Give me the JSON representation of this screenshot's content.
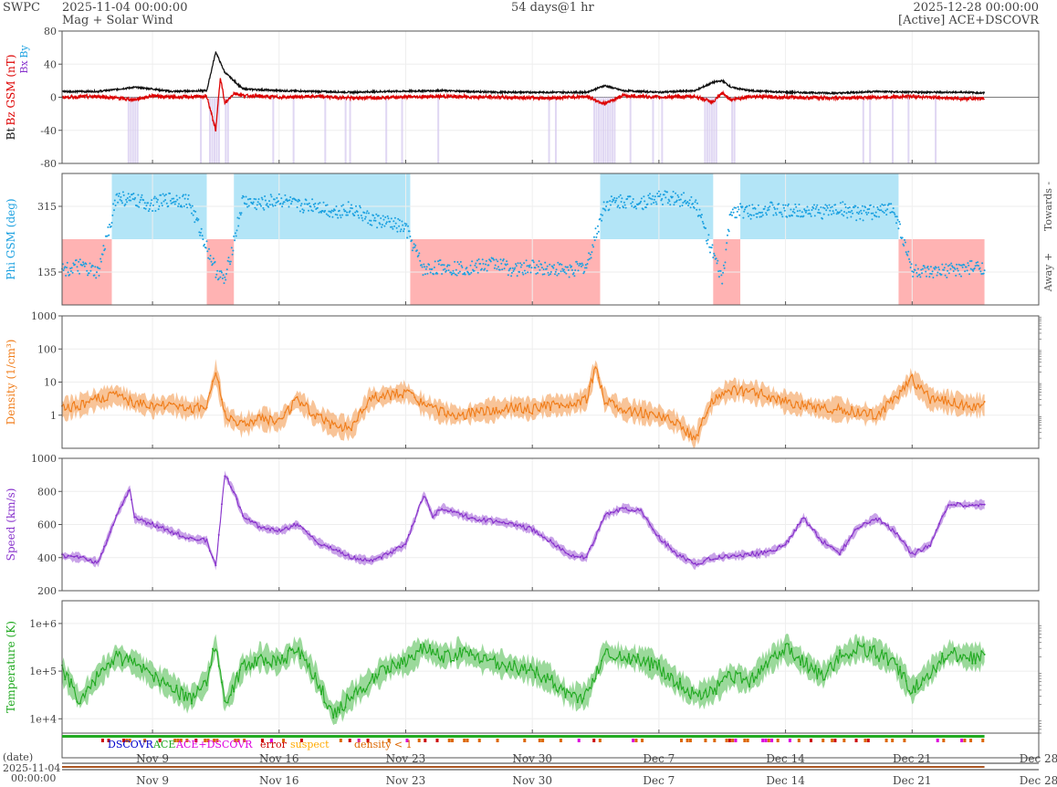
{
  "header": {
    "org": "SWPC",
    "start": "2025-11-04 00:00:00",
    "subtitle": "Mag + Solar Wind",
    "span": "54 days@1 hr",
    "end": "2025-12-28 00:00:00",
    "source": "[Active] ACE+DSCOVR"
  },
  "x_axis": {
    "start_date": "2025-11-04",
    "end_date": "2025-12-28",
    "tick_labels": [
      "Nov 9",
      "Nov 16",
      "Nov 23",
      "Nov 30",
      "Dec 7",
      "Dec 14",
      "Dec 21",
      "Dec 28"
    ],
    "tick_dates": [
      "2025-11-09",
      "2025-11-16",
      "2025-11-23",
      "2025-11-30",
      "2025-12-07",
      "2025-12-14",
      "2025-12-21",
      "2025-12-28"
    ],
    "date_label": "(date)",
    "corner_date": "2025-11-04",
    "corner_time": "00:00:00"
  },
  "legend": {
    "dscovr": "DSCOVR",
    "ace": "ACE",
    "ace_dscovr": "ACE+DSCOVR",
    "error": "error",
    "suspect": "suspect",
    "density_lt1": "density < 1",
    "colors": {
      "dscovr": "#0000cc",
      "ace": "#22aa22",
      "ace_dscovr": "#dd00dd",
      "error": "#cc0000",
      "suspect": "#ffaa00",
      "density_lt1": "#dd6600"
    }
  },
  "chart_data": [
    {
      "type": "line",
      "panel": "mag",
      "ylabel_bt": "Bt",
      "ylabel_bz": "Bz GSM (nT)",
      "ylabel_bx": "Bx",
      "ylabel_by": "By",
      "ylim": [
        -80,
        80
      ],
      "yticks": [
        "80",
        "40",
        "0",
        "-40",
        "-80"
      ],
      "series": [
        {
          "name": "Bt",
          "color": "#111111",
          "x": [
            "2025-11-04",
            "2025-11-06",
            "2025-11-08",
            "2025-11-09",
            "2025-11-10",
            "2025-11-12",
            "2025-11-12 12:00",
            "2025-11-12 18:00",
            "2025-11-13",
            "2025-11-13 12:00",
            "2025-11-14",
            "2025-11-16",
            "2025-11-18",
            "2025-11-20",
            "2025-11-22",
            "2025-11-25",
            "2025-11-28",
            "2025-12-01",
            "2025-12-03",
            "2025-12-04",
            "2025-12-05",
            "2025-12-07",
            "2025-12-09",
            "2025-12-10",
            "2025-12-10 12:00",
            "2025-12-11",
            "2025-12-12",
            "2025-12-14",
            "2025-12-17",
            "2025-12-19",
            "2025-12-21",
            "2025-12-24",
            "2025-12-25"
          ],
          "values": [
            7,
            7,
            12,
            10,
            7,
            8,
            55,
            42,
            30,
            20,
            10,
            8,
            7,
            6,
            7,
            8,
            6,
            6,
            6,
            14,
            8,
            6,
            8,
            18,
            20,
            12,
            8,
            6,
            5,
            7,
            6,
            6,
            5
          ]
        },
        {
          "name": "Bz GSM",
          "color": "#dd0000",
          "x": [
            "2025-11-04",
            "2025-11-06",
            "2025-11-08",
            "2025-11-09",
            "2025-11-10",
            "2025-11-12",
            "2025-11-12 12:00",
            "2025-11-12 18:00",
            "2025-11-13",
            "2025-11-13 12:00",
            "2025-11-14",
            "2025-11-16",
            "2025-11-18",
            "2025-11-20",
            "2025-11-22",
            "2025-11-25",
            "2025-11-28",
            "2025-12-01",
            "2025-12-03",
            "2025-12-04",
            "2025-12-05",
            "2025-12-07",
            "2025-12-09",
            "2025-12-10",
            "2025-12-10 12:00",
            "2025-12-11",
            "2025-12-12",
            "2025-12-14",
            "2025-12-17",
            "2025-12-19",
            "2025-12-21",
            "2025-12-24",
            "2025-12-25"
          ],
          "values": [
            0,
            1,
            -3,
            2,
            0,
            1,
            -40,
            25,
            -8,
            5,
            2,
            0,
            1,
            -1,
            0,
            1,
            0,
            -1,
            1,
            -8,
            2,
            0,
            1,
            -6,
            5,
            -3,
            1,
            0,
            -1,
            0,
            1,
            -2,
            -1
          ]
        }
      ]
    },
    {
      "type": "scatter",
      "panel": "phi",
      "ylabel": "Phi GSM (deg)",
      "right_label_top": "Towards -",
      "right_label_bottom": "Away +",
      "ylim": [
        45,
        405
      ],
      "yticks": [
        "315",
        "135"
      ],
      "sectors": [
        {
          "name": "Away +",
          "color": "#ffb3b3",
          "from": "2025-11-04",
          "to": "2025-11-06 18:00"
        },
        {
          "name": "Towards -",
          "color": "#b3e5f7",
          "from": "2025-11-06 18:00",
          "to": "2025-11-12"
        },
        {
          "name": "Away +",
          "color": "#ffb3b3",
          "from": "2025-11-12",
          "to": "2025-11-13 12:00"
        },
        {
          "name": "Towards -",
          "color": "#b3e5f7",
          "from": "2025-11-13 12:00",
          "to": "2025-11-23 06:00"
        },
        {
          "name": "Away +",
          "color": "#ffb3b3",
          "from": "2025-11-23 06:00",
          "to": "2025-12-03 18:00"
        },
        {
          "name": "Towards -",
          "color": "#b3e5f7",
          "from": "2025-12-03 18:00",
          "to": "2025-12-10"
        },
        {
          "name": "Away +",
          "color": "#ffb3b3",
          "from": "2025-12-10",
          "to": "2025-12-11 12:00"
        },
        {
          "name": "Towards -",
          "color": "#b3e5f7",
          "from": "2025-12-11 12:00",
          "to": "2025-12-20 06:00"
        },
        {
          "name": "Away +",
          "color": "#ffb3b3",
          "from": "2025-12-20 06:00",
          "to": "2025-12-25"
        }
      ],
      "series": [
        {
          "name": "Phi GSM",
          "color": "#1aa0e0",
          "x": [
            "2025-11-04",
            "2025-11-05",
            "2025-11-06",
            "2025-11-07",
            "2025-11-08",
            "2025-11-09",
            "2025-11-10",
            "2025-11-11",
            "2025-11-12 12:00",
            "2025-11-13",
            "2025-11-14",
            "2025-11-15",
            "2025-11-16",
            "2025-11-17",
            "2025-11-18",
            "2025-11-19",
            "2025-11-20",
            "2025-11-21",
            "2025-11-22",
            "2025-11-23",
            "2025-11-24",
            "2025-11-25",
            "2025-11-26",
            "2025-11-27",
            "2025-11-28",
            "2025-11-29",
            "2025-11-30",
            "2025-12-01",
            "2025-12-02",
            "2025-12-03",
            "2025-12-04",
            "2025-12-05",
            "2025-12-06",
            "2025-12-07",
            "2025-12-08",
            "2025-12-09",
            "2025-12-10 12:00",
            "2025-12-11",
            "2025-12-12",
            "2025-12-13",
            "2025-12-14",
            "2025-12-15",
            "2025-12-16",
            "2025-12-17",
            "2025-12-18",
            "2025-12-19",
            "2025-12-20",
            "2025-12-21",
            "2025-12-22",
            "2025-12-23",
            "2025-12-24",
            "2025-12-25"
          ],
          "values": [
            140,
            150,
            130,
            340,
            330,
            320,
            335,
            330,
            140,
            110,
            330,
            320,
            335,
            315,
            320,
            300,
            310,
            280,
            270,
            255,
            140,
            150,
            145,
            150,
            160,
            140,
            150,
            145,
            140,
            150,
            320,
            330,
            325,
            340,
            335,
            330,
            110,
            305,
            300,
            310,
            300,
            305,
            300,
            310,
            295,
            300,
            310,
            140,
            130,
            140,
            145,
            150
          ]
        }
      ]
    },
    {
      "type": "line",
      "panel": "density",
      "ylabel": "Density (1/cm³)",
      "scale": "log",
      "ylim": [
        0.1,
        1000
      ],
      "yticks": [
        "1000",
        "100",
        "10",
        "1"
      ],
      "series": [
        {
          "name": "Density",
          "color": "#f07d1a",
          "x": [
            "2025-11-04",
            "2025-11-05",
            "2025-11-06",
            "2025-11-07",
            "2025-11-08",
            "2025-11-09",
            "2025-11-10",
            "2025-11-11",
            "2025-11-12",
            "2025-11-12 12:00",
            "2025-11-13",
            "2025-11-14",
            "2025-11-15",
            "2025-11-16",
            "2025-11-17",
            "2025-11-18",
            "2025-11-19",
            "2025-11-20",
            "2025-11-21",
            "2025-11-22",
            "2025-11-23",
            "2025-11-24",
            "2025-11-25",
            "2025-11-26",
            "2025-11-27",
            "2025-11-28",
            "2025-11-29",
            "2025-11-30",
            "2025-12-01",
            "2025-12-02",
            "2025-12-03",
            "2025-12-03 12:00",
            "2025-12-04",
            "2025-12-05",
            "2025-12-06",
            "2025-12-07",
            "2025-12-08",
            "2025-12-09",
            "2025-12-10",
            "2025-12-11",
            "2025-12-12",
            "2025-12-13",
            "2025-12-14",
            "2025-12-15",
            "2025-12-16",
            "2025-12-17",
            "2025-12-18",
            "2025-12-19",
            "2025-12-20",
            "2025-12-21",
            "2025-12-22",
            "2025-12-23",
            "2025-12-24",
            "2025-12-25"
          ],
          "values": [
            1.5,
            2.0,
            3.0,
            4.0,
            2.5,
            1.8,
            2.2,
            1.5,
            2.0,
            20,
            1.0,
            0.5,
            0.8,
            0.6,
            3.0,
            1.0,
            0.5,
            0.4,
            3.0,
            4.0,
            5.0,
            2.0,
            1.2,
            1.0,
            1.2,
            1.5,
            1.8,
            1.5,
            2.0,
            2.0,
            3.0,
            30,
            3.0,
            1.5,
            1.2,
            1.0,
            0.6,
            0.2,
            3.0,
            6.0,
            5.0,
            4.0,
            2.5,
            2.0,
            1.5,
            1.5,
            1.2,
            1.0,
            3.0,
            12,
            3.0,
            2.5,
            2.0,
            2.0
          ]
        }
      ]
    },
    {
      "type": "line",
      "panel": "speed",
      "ylabel": "Speed (km/s)",
      "ylim": [
        200,
        1000
      ],
      "yticks": [
        "1000",
        "800",
        "600",
        "400",
        "200"
      ],
      "series": [
        {
          "name": "Speed",
          "color": "#8833cc",
          "x": [
            "2025-11-04",
            "2025-11-05",
            "2025-11-06",
            "2025-11-07",
            "2025-11-07 18:00",
            "2025-11-08",
            "2025-11-09",
            "2025-11-10",
            "2025-11-11",
            "2025-11-12",
            "2025-11-12 12:00",
            "2025-11-13",
            "2025-11-13 12:00",
            "2025-11-14",
            "2025-11-15",
            "2025-11-16",
            "2025-11-17",
            "2025-11-18",
            "2025-11-19",
            "2025-11-20",
            "2025-11-21",
            "2025-11-22",
            "2025-11-23",
            "2025-11-24",
            "2025-11-24 12:00",
            "2025-11-25",
            "2025-11-26",
            "2025-11-27",
            "2025-11-28",
            "2025-11-29",
            "2025-11-30",
            "2025-12-01",
            "2025-12-02",
            "2025-12-03",
            "2025-12-04",
            "2025-12-05",
            "2025-12-06",
            "2025-12-07",
            "2025-12-08",
            "2025-12-09",
            "2025-12-10",
            "2025-12-11",
            "2025-12-12",
            "2025-12-13",
            "2025-12-14",
            "2025-12-15",
            "2025-12-16",
            "2025-12-17",
            "2025-12-18",
            "2025-12-19",
            "2025-12-20",
            "2025-12-21",
            "2025-12-22",
            "2025-12-23",
            "2025-12-24",
            "2025-12-25"
          ],
          "values": [
            410,
            400,
            370,
            650,
            820,
            640,
            600,
            560,
            520,
            500,
            350,
            900,
            800,
            650,
            580,
            560,
            600,
            500,
            450,
            400,
            380,
            420,
            480,
            780,
            650,
            700,
            660,
            630,
            620,
            600,
            570,
            500,
            420,
            400,
            650,
            700,
            680,
            520,
            420,
            360,
            400,
            410,
            420,
            430,
            480,
            640,
            500,
            430,
            580,
            640,
            560,
            420,
            480,
            720,
            720,
            720
          ]
        }
      ]
    },
    {
      "type": "line",
      "panel": "temperature",
      "ylabel": "Temperature (K)",
      "scale": "log",
      "ylim": [
        5000,
        3000000
      ],
      "yticks": [
        "1e+6",
        "1e+5",
        "1e+4"
      ],
      "series": [
        {
          "name": "Temperature",
          "color": "#22aa22",
          "x": [
            "2025-11-04",
            "2025-11-05",
            "2025-11-06",
            "2025-11-07",
            "2025-11-08",
            "2025-11-09",
            "2025-11-10",
            "2025-11-11",
            "2025-11-12",
            "2025-11-12 12:00",
            "2025-11-13",
            "2025-11-14",
            "2025-11-15",
            "2025-11-16",
            "2025-11-17",
            "2025-11-18",
            "2025-11-19",
            "2025-11-20",
            "2025-11-21",
            "2025-11-22",
            "2025-11-23",
            "2025-11-24",
            "2025-11-25",
            "2025-11-26",
            "2025-11-27",
            "2025-11-28",
            "2025-11-29",
            "2025-11-30",
            "2025-12-01",
            "2025-12-02",
            "2025-12-03",
            "2025-12-04",
            "2025-12-05",
            "2025-12-06",
            "2025-12-07",
            "2025-12-08",
            "2025-12-09",
            "2025-12-10",
            "2025-12-11",
            "2025-12-12",
            "2025-12-13",
            "2025-12-14",
            "2025-12-15",
            "2025-12-16",
            "2025-12-17",
            "2025-12-18",
            "2025-12-19",
            "2025-12-20",
            "2025-12-21",
            "2025-12-22",
            "2025-12-23",
            "2025-12-24",
            "2025-12-25"
          ],
          "values": [
            100000,
            25000,
            80000,
            200000,
            150000,
            80000,
            50000,
            25000,
            60000,
            400000,
            20000,
            120000,
            200000,
            150000,
            300000,
            80000,
            12000,
            30000,
            60000,
            120000,
            150000,
            300000,
            200000,
            250000,
            180000,
            150000,
            120000,
            100000,
            70000,
            30000,
            30000,
            250000,
            200000,
            180000,
            120000,
            60000,
            30000,
            40000,
            80000,
            60000,
            150000,
            300000,
            150000,
            80000,
            200000,
            300000,
            250000,
            150000,
            40000,
            100000,
            250000,
            200000,
            200000
          ]
        }
      ]
    }
  ]
}
